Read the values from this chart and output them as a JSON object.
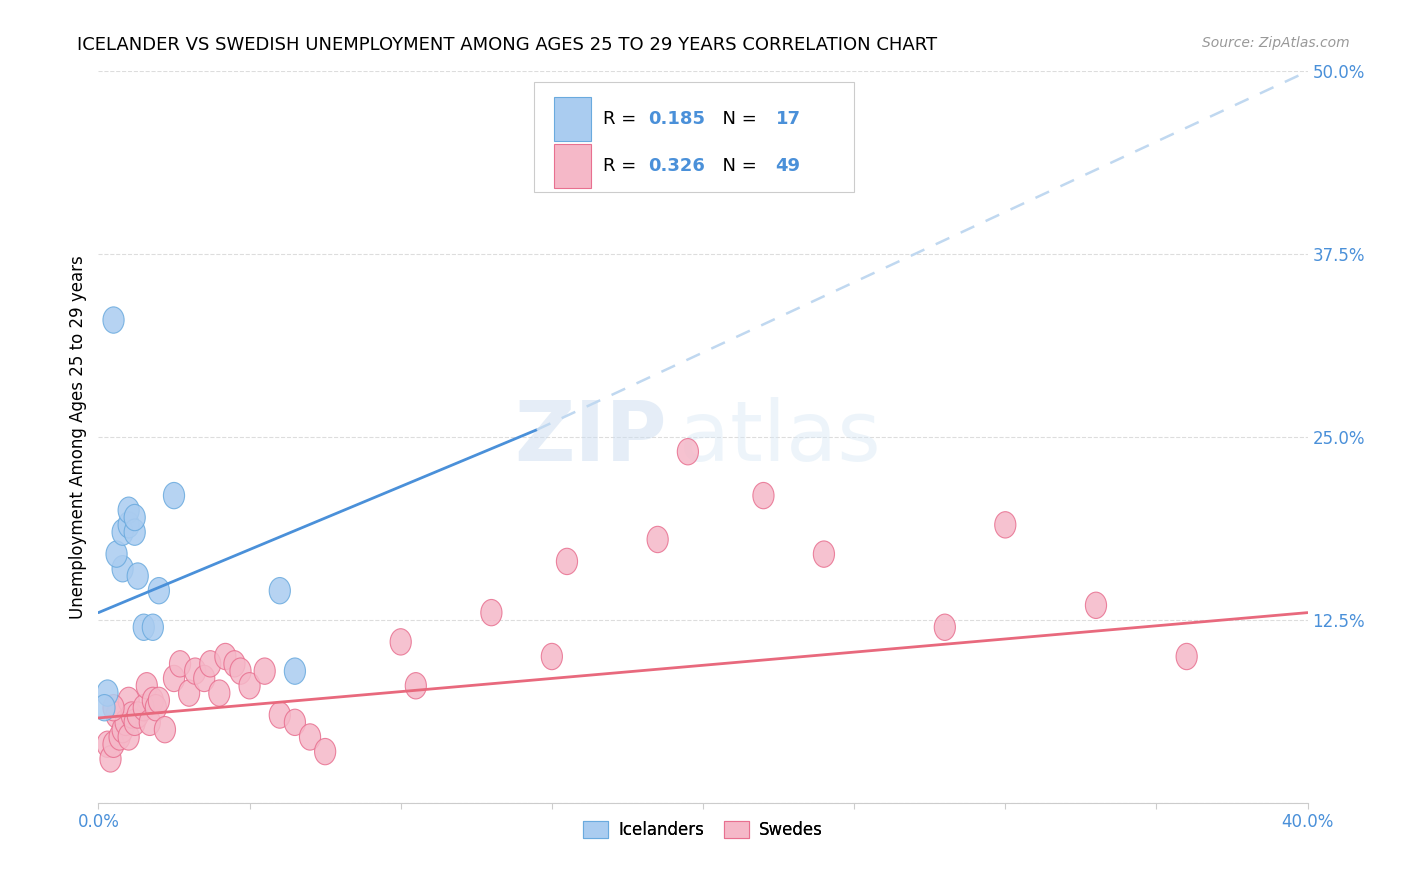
{
  "title": "ICELANDER VS SWEDISH UNEMPLOYMENT AMONG AGES 25 TO 29 YEARS CORRELATION CHART",
  "source": "Source: ZipAtlas.com",
  "ylabel": "Unemployment Among Ages 25 to 29 years",
  "xlim": [
    0.0,
    0.4
  ],
  "ylim": [
    0.0,
    0.5
  ],
  "xticks": [
    0.0,
    0.05,
    0.1,
    0.15,
    0.2,
    0.25,
    0.3,
    0.35,
    0.4
  ],
  "xticklabels": [
    "0.0%",
    "",
    "",
    "",
    "",
    "",
    "",
    "",
    "40.0%"
  ],
  "yticks_right": [
    0.0,
    0.125,
    0.25,
    0.375,
    0.5
  ],
  "yticklabels_right": [
    "",
    "12.5%",
    "25.0%",
    "37.5%",
    "50.0%"
  ],
  "iceland_color": "#aaccf0",
  "sweden_color": "#f5b8c8",
  "iceland_edge_color": "#6aaade",
  "sweden_edge_color": "#e87090",
  "iceland_line_color": "#4a90d9",
  "sweden_line_color": "#e8697d",
  "trendline_ext_color": "#c0d8f0",
  "legend_R_iceland": "0.185",
  "legend_N_iceland": "17",
  "legend_R_sweden": "0.326",
  "legend_N_sweden": "49",
  "watermark_zip": "ZIP",
  "watermark_atlas": "atlas",
  "grid_color": "#dddddd",
  "iceland_points_x": [
    0.008,
    0.003,
    0.006,
    0.008,
    0.01,
    0.01,
    0.012,
    0.012,
    0.013,
    0.015,
    0.018,
    0.02,
    0.025,
    0.06,
    0.065,
    0.005,
    0.002
  ],
  "iceland_points_y": [
    0.16,
    0.075,
    0.17,
    0.185,
    0.19,
    0.2,
    0.185,
    0.195,
    0.155,
    0.12,
    0.12,
    0.145,
    0.21,
    0.145,
    0.09,
    0.33,
    0.065
  ],
  "sweden_points_x": [
    0.003,
    0.004,
    0.005,
    0.006,
    0.007,
    0.008,
    0.009,
    0.01,
    0.01,
    0.011,
    0.012,
    0.013,
    0.015,
    0.016,
    0.017,
    0.018,
    0.019,
    0.02,
    0.022,
    0.025,
    0.027,
    0.03,
    0.032,
    0.035,
    0.037,
    0.04,
    0.042,
    0.045,
    0.047,
    0.05,
    0.055,
    0.06,
    0.065,
    0.07,
    0.075,
    0.1,
    0.105,
    0.13,
    0.15,
    0.155,
    0.185,
    0.195,
    0.22,
    0.24,
    0.28,
    0.3,
    0.33,
    0.36,
    0.005
  ],
  "sweden_points_y": [
    0.04,
    0.03,
    0.04,
    0.06,
    0.045,
    0.05,
    0.055,
    0.07,
    0.045,
    0.06,
    0.055,
    0.06,
    0.065,
    0.08,
    0.055,
    0.07,
    0.065,
    0.07,
    0.05,
    0.085,
    0.095,
    0.075,
    0.09,
    0.085,
    0.095,
    0.075,
    0.1,
    0.095,
    0.09,
    0.08,
    0.09,
    0.06,
    0.055,
    0.045,
    0.035,
    0.11,
    0.08,
    0.13,
    0.1,
    0.165,
    0.18,
    0.24,
    0.21,
    0.17,
    0.12,
    0.19,
    0.135,
    0.1,
    0.065
  ],
  "iceland_trend_x1": 0.0,
  "iceland_trend_y1": 0.13,
  "iceland_trend_x2": 0.145,
  "iceland_trend_y2": 0.255,
  "iceland_trend_ext_x2": 0.4,
  "iceland_trend_ext_y2": 0.5,
  "sweden_trend_x1": 0.0,
  "sweden_trend_y1": 0.058,
  "sweden_trend_x2": 0.4,
  "sweden_trend_y2": 0.13
}
